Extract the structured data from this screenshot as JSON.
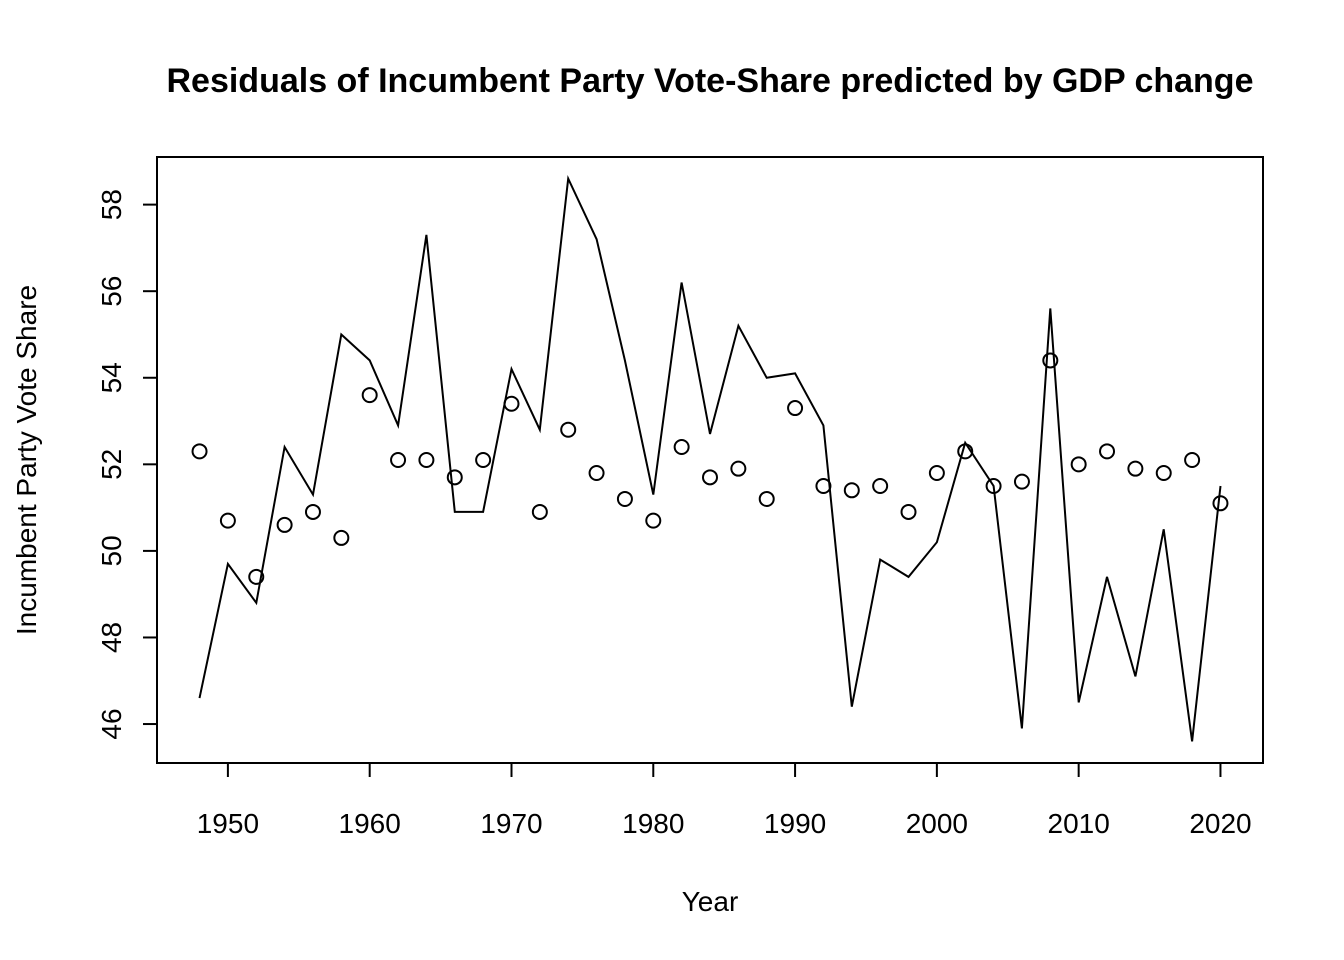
{
  "chart_data": {
    "type": "line",
    "title": "Residuals of Incumbent Party Vote-Share predicted by GDP change",
    "xlabel": "Year",
    "ylabel": "Incumbent Party Vote Share",
    "xlim": [
      1945,
      2023
    ],
    "ylim": [
      45.1,
      59.1
    ],
    "x_ticks": [
      1950,
      1960,
      1970,
      1980,
      1990,
      2000,
      2010,
      2020
    ],
    "y_ticks": [
      46,
      48,
      50,
      52,
      54,
      56,
      58
    ],
    "grid": false,
    "legend": "none",
    "x": [
      1948,
      1950,
      1952,
      1954,
      1956,
      1958,
      1960,
      1962,
      1964,
      1966,
      1968,
      1970,
      1972,
      1974,
      1976,
      1978,
      1980,
      1982,
      1984,
      1986,
      1988,
      1990,
      1992,
      1994,
      1996,
      1998,
      2000,
      2002,
      2004,
      2006,
      2008,
      2010,
      2012,
      2014,
      2016,
      2018,
      2020
    ],
    "series": [
      {
        "style": "line",
        "values": [
          46.6,
          49.7,
          48.8,
          52.4,
          51.3,
          55.0,
          54.4,
          52.9,
          57.3,
          50.9,
          50.9,
          54.2,
          52.8,
          58.6,
          57.2,
          54.4,
          51.3,
          56.2,
          52.7,
          55.2,
          54.0,
          54.1,
          52.9,
          46.4,
          49.8,
          49.4,
          50.2,
          52.5,
          51.5,
          45.9,
          55.6,
          46.5,
          49.4,
          47.1,
          50.5,
          45.6,
          51.5
        ]
      },
      {
        "style": "points",
        "values": [
          52.3,
          50.7,
          49.4,
          50.6,
          50.9,
          50.3,
          53.6,
          52.1,
          52.1,
          51.7,
          52.1,
          53.4,
          50.9,
          52.8,
          51.8,
          51.2,
          50.7,
          52.4,
          51.7,
          51.9,
          51.2,
          53.3,
          51.5,
          51.4,
          51.5,
          50.9,
          51.8,
          52.3,
          51.5,
          51.6,
          54.4,
          52.0,
          52.3,
          51.9,
          51.8,
          52.1,
          51.1
        ]
      }
    ]
  }
}
